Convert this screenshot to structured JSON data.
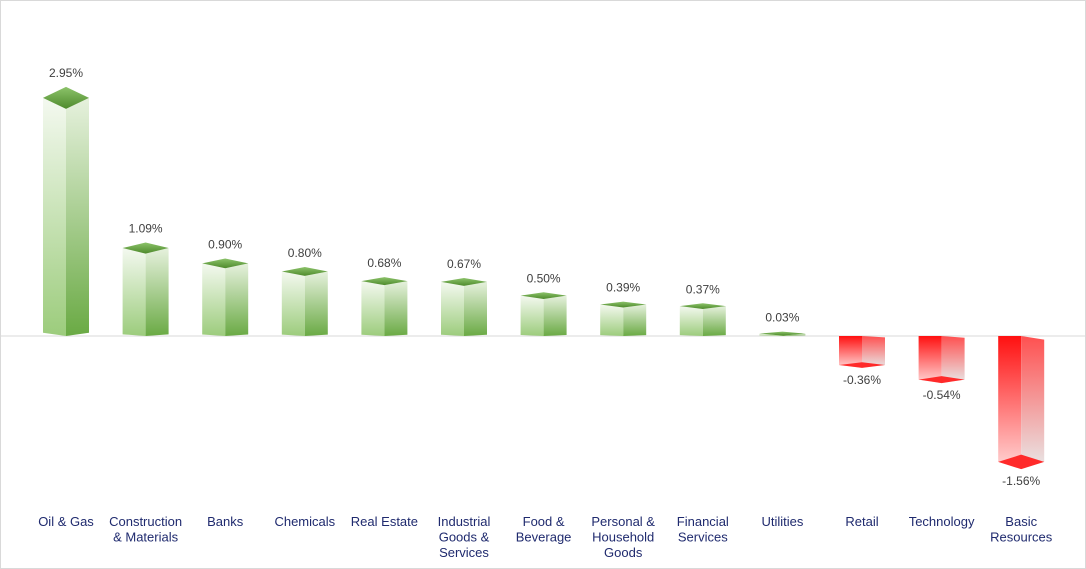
{
  "chart_data": {
    "type": "bar",
    "title": "",
    "xlabel": "",
    "ylabel": "",
    "ylim": [
      -1.56,
      2.95
    ],
    "grid": false,
    "legend": "none",
    "value_suffix": "%",
    "categories": [
      [
        "Oil & Gas"
      ],
      [
        "Construction",
        "& Materials"
      ],
      [
        "Banks"
      ],
      [
        "Chemicals"
      ],
      [
        "Real Estate"
      ],
      [
        "Industrial",
        "Goods &",
        "Services"
      ],
      [
        "Food &",
        "Beverage"
      ],
      [
        "Personal &",
        "Household",
        "Goods"
      ],
      [
        "Financial",
        "Services"
      ],
      [
        "Utilities"
      ],
      [
        "Retail"
      ],
      [
        "Technology"
      ],
      [
        "Basic",
        "Resources"
      ]
    ],
    "values": [
      2.95,
      1.09,
      0.9,
      0.8,
      0.68,
      0.67,
      0.5,
      0.39,
      0.37,
      0.03,
      -0.36,
      -0.54,
      -1.56
    ],
    "labels": [
      "2.95%",
      "1.09%",
      "0.90%",
      "0.80%",
      "0.68%",
      "0.67%",
      "0.50%",
      "0.39%",
      "0.37%",
      "0.03%",
      "-0.36%",
      "-0.54%",
      "-1.56%"
    ],
    "colors": {
      "positive": "#70ad47",
      "negative": "#ff0000",
      "axis": "#d9d9d9"
    }
  }
}
